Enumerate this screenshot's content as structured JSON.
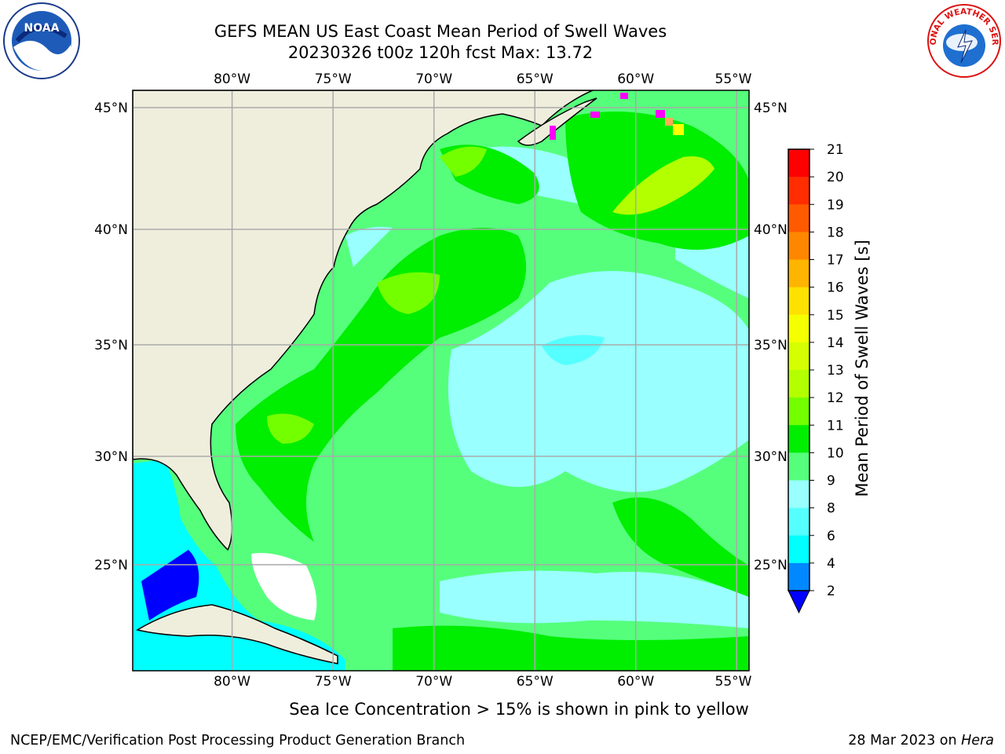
{
  "title": {
    "line1": "GEFS MEAN US East Coast Mean Period of Swell Waves",
    "line2": "20230326 t00z 120h fcst   Max: 13.72"
  },
  "logos": {
    "left": {
      "icon": "noaa-logo-icon",
      "text": "NOAA"
    },
    "right": {
      "icon": "nws-logo-icon",
      "text": "NATIONAL WEATHER SERVICE"
    }
  },
  "map": {
    "projection": "cylindrical",
    "lon_range": [
      -85,
      -54
    ],
    "lat_range": [
      20.5,
      46
    ],
    "lon_ticks": [
      "80°W",
      "75°W",
      "70°W",
      "65°W",
      "60°W",
      "55°W"
    ],
    "lat_ticks": [
      "45°N",
      "40°N",
      "35°N",
      "30°N",
      "25°N"
    ],
    "grid": true,
    "land_color": "#efeedd",
    "ocean_base_color": "#55ff7c"
  },
  "colorbar": {
    "label": "Mean Period of Swell Waves [s]",
    "ticks": [
      "21",
      "20",
      "19",
      "18",
      "17",
      "16",
      "15",
      "14",
      "13",
      "12",
      "11",
      "10",
      "9",
      "8",
      "6",
      "4",
      "2"
    ],
    "colors": [
      "#ff0000",
      "#ff2d00",
      "#ff5a00",
      "#ff8700",
      "#ffb400",
      "#ffe100",
      "#f6ff00",
      "#d5ff00",
      "#b3ff00",
      "#73ff00",
      "#00ee00",
      "#55ff7c",
      "#99ffff",
      "#55ffff",
      "#00ffff",
      "#0088ff"
    ],
    "extend_color": "#0000ff"
  },
  "footnote": "Sea Ice Concentration > 15% is shown in pink to yellow",
  "credits": {
    "left": "NCEP/EMC/Verification Post Processing Product Generation Branch",
    "date": "28 Mar 2023 on",
    "machine": "Hera"
  }
}
